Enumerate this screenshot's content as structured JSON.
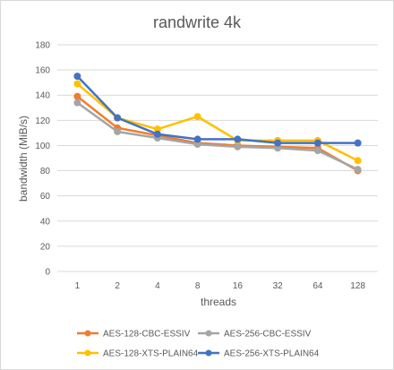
{
  "chart_data": {
    "type": "line",
    "title": "randwrite 4k",
    "xlabel": "threads",
    "ylabel": "bandwidth (MiB/s)",
    "categories": [
      "1",
      "2",
      "4",
      "8",
      "16",
      "32",
      "64",
      "128"
    ],
    "ylim": [
      0,
      180
    ],
    "yticks": [
      0,
      20,
      40,
      60,
      80,
      100,
      120,
      140,
      160,
      180
    ],
    "grid": "horizontal",
    "legend_position": "bottom",
    "series": [
      {
        "name": "AES-128-CBC-ESSIV",
        "color": "#ED7D31",
        "values": [
          139,
          114,
          108,
          102,
          100,
          99,
          98,
          80
        ]
      },
      {
        "name": "AES-256-CBC-ESSIV",
        "color": "#A5A5A5",
        "values": [
          134,
          111,
          106,
          101,
          99,
          98,
          96,
          81
        ]
      },
      {
        "name": "AES-128-XTS-PLAIN64",
        "color": "#FFC000",
        "values": [
          149,
          122,
          113,
          123,
          104,
          104,
          104,
          88
        ]
      },
      {
        "name": "AES-256-XTS-PLAIN64",
        "color": "#4472C4",
        "values": [
          155,
          122,
          109,
          105,
          105,
          102,
          102,
          102
        ]
      }
    ]
  }
}
